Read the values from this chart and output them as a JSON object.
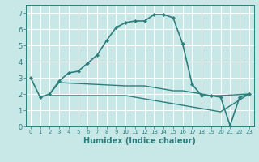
{
  "title": "",
  "xlabel": "Humidex (Indice chaleur)",
  "bg_color": "#c8e8e8",
  "line_color": "#2d7d7d",
  "grid_color": "#ffffff",
  "xlim": [
    -0.5,
    23.5
  ],
  "ylim": [
    0,
    7.5
  ],
  "xticks": [
    0,
    1,
    2,
    3,
    4,
    5,
    6,
    7,
    8,
    9,
    10,
    11,
    12,
    13,
    14,
    15,
    16,
    17,
    18,
    19,
    20,
    21,
    22,
    23
  ],
  "yticks": [
    0,
    1,
    2,
    3,
    4,
    5,
    6,
    7
  ],
  "series": [
    {
      "x": [
        0,
        1,
        2,
        3,
        4,
        5,
        6,
        7,
        8,
        9,
        10,
        11,
        12,
        13,
        14,
        15,
        16,
        17,
        18,
        19,
        20,
        21,
        22,
        23
      ],
      "y": [
        3.0,
        1.8,
        2.0,
        2.8,
        3.3,
        3.4,
        3.9,
        4.4,
        5.3,
        6.1,
        6.4,
        6.5,
        6.5,
        6.9,
        6.9,
        6.7,
        5.1,
        2.6,
        1.9,
        1.9,
        1.8,
        0.05,
        1.8,
        2.0
      ],
      "marker": true,
      "lw": 1.2
    },
    {
      "x": [
        2,
        3,
        10,
        11,
        12,
        13,
        14,
        15,
        16,
        17,
        18,
        19,
        20,
        23
      ],
      "y": [
        2.0,
        2.7,
        2.5,
        2.5,
        2.5,
        2.4,
        2.3,
        2.2,
        2.2,
        2.1,
        2.0,
        1.9,
        1.9,
        2.0
      ],
      "marker": false,
      "lw": 1.0
    },
    {
      "x": [
        2,
        10,
        11,
        12,
        13,
        14,
        15,
        16,
        17,
        18,
        19,
        20,
        23
      ],
      "y": [
        1.9,
        1.9,
        1.8,
        1.7,
        1.6,
        1.5,
        1.4,
        1.3,
        1.2,
        1.1,
        1.0,
        0.9,
        2.0
      ],
      "marker": false,
      "lw": 1.0
    }
  ],
  "xlabel_fontsize": 7,
  "tick_fontsize": 5,
  "ytick_fontsize": 6
}
